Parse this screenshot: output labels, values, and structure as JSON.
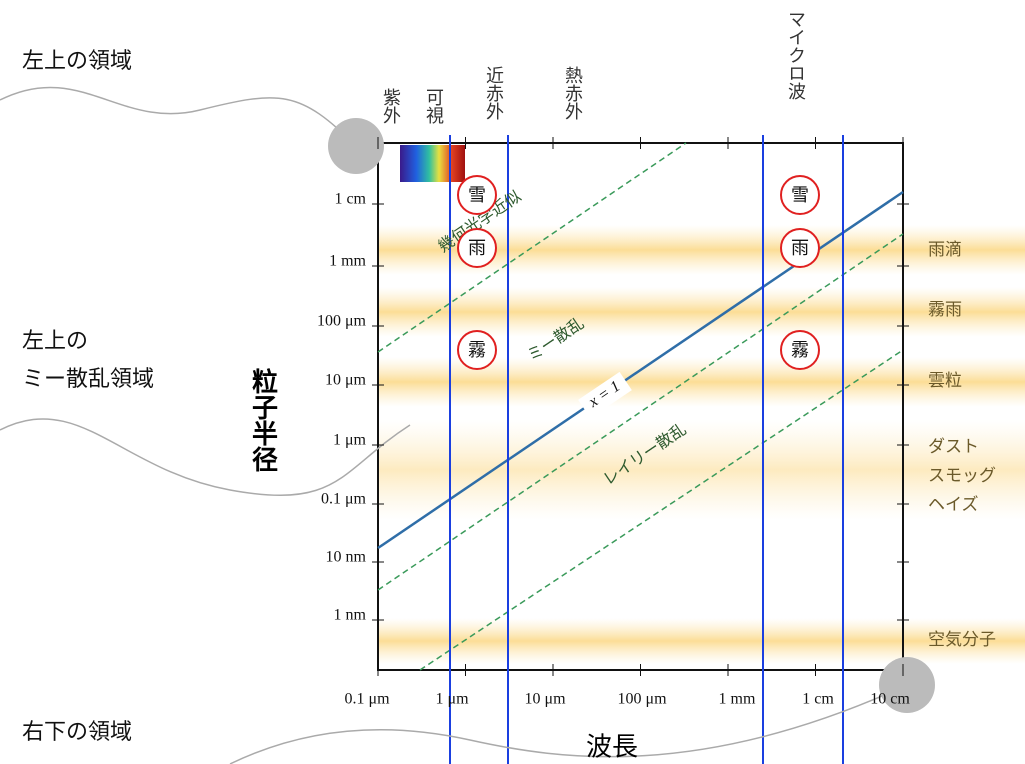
{
  "annotations": [
    "左上の領域",
    "左上の",
    "ミー散乱領域",
    "右下の領域"
  ],
  "y_axis": {
    "title": "粒子半径",
    "labels": [
      "1 cm",
      "1 mm",
      "100 μm",
      "10 μm",
      "1 μm",
      "0.1 μm",
      "10 nm",
      "1 nm"
    ]
  },
  "x_axis": {
    "title": "波長",
    "labels": [
      "0.1 μm",
      "1 μm",
      "10 μm",
      "100 μm",
      "1 mm",
      "1 cm",
      "10 cm"
    ]
  },
  "spectrum": [
    "紫外",
    "可視",
    "近赤外",
    "熱赤外",
    "マイクロ波"
  ],
  "particles": [
    "雨滴",
    "霧雨",
    "雲粒",
    "ダスト",
    "スモッグ",
    "ヘイズ",
    "空気分子"
  ],
  "regimes": [
    "幾何光学近似",
    "ミー散乱",
    "x = 1",
    "レイリー散乱"
  ],
  "markers": [
    "雪",
    "雨",
    "霧",
    "雪",
    "雨",
    "霧"
  ]
}
